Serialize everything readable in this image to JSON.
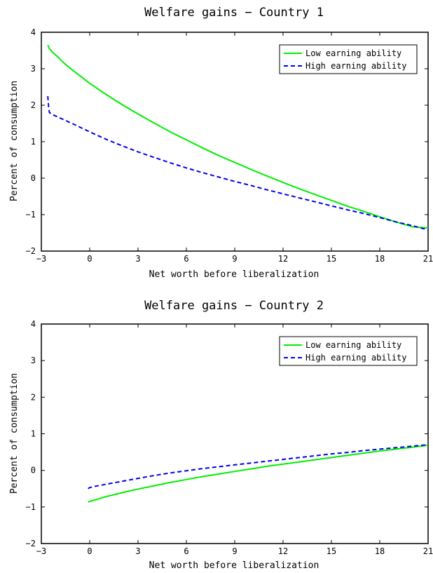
{
  "chart_data": [
    {
      "type": "line",
      "title": "Welfare gains − Country 1",
      "xlabel": "Net worth before liberalization",
      "ylabel": "Percent of consumption",
      "xlim": [
        -3,
        21
      ],
      "ylim": [
        -2,
        4
      ],
      "xticks": [
        -3,
        0,
        3,
        6,
        9,
        12,
        15,
        18,
        21
      ],
      "yticks": [
        -2,
        -1,
        0,
        1,
        2,
        3,
        4
      ],
      "xtick_labels": [
        "−3",
        "0",
        "3",
        "6",
        "9",
        "12",
        "15",
        "18",
        "21"
      ],
      "ytick_labels": [
        "−2",
        "−1",
        "0",
        "1",
        "2",
        "3",
        "4"
      ],
      "grid": false,
      "legend_position": "top-right",
      "series": [
        {
          "name": "Low earning ability",
          "color": "#00ee00",
          "dash": "solid",
          "x": [
            -2.6,
            -2.5,
            -2.3,
            -2,
            -1.5,
            -1,
            0,
            1,
            2,
            3,
            4,
            5,
            6,
            7,
            8,
            9,
            10,
            11,
            12,
            13,
            14,
            15,
            16,
            17,
            18,
            19,
            20,
            21
          ],
          "y": [
            3.65,
            3.55,
            3.45,
            3.33,
            3.12,
            2.94,
            2.6,
            2.3,
            2.02,
            1.76,
            1.51,
            1.27,
            1.05,
            0.83,
            0.62,
            0.43,
            0.24,
            0.06,
            -0.12,
            -0.29,
            -0.45,
            -0.61,
            -0.77,
            -0.91,
            -1.06,
            -1.2,
            -1.33,
            -1.37
          ]
        },
        {
          "name": "High earning ability",
          "color": "#0000ee",
          "dash": "dashed",
          "x": [
            -2.6,
            -2.55,
            -2.5,
            -2.3,
            -2,
            -1.5,
            -1,
            0,
            1,
            2,
            3,
            4,
            5,
            6,
            7,
            8,
            9,
            10,
            11,
            12,
            13,
            14,
            15,
            16,
            17,
            18,
            19,
            20,
            21
          ],
          "y": [
            2.25,
            1.95,
            1.8,
            1.74,
            1.68,
            1.58,
            1.48,
            1.27,
            1.07,
            0.89,
            0.72,
            0.57,
            0.42,
            0.28,
            0.15,
            0.03,
            -0.09,
            -0.2,
            -0.32,
            -0.43,
            -0.54,
            -0.65,
            -0.76,
            -0.87,
            -0.97,
            -1.08,
            -1.2,
            -1.3,
            -1.42
          ]
        }
      ]
    },
    {
      "type": "line",
      "title": "Welfare gains − Country 2",
      "xlabel": "Net worth before liberalization",
      "ylabel": "Percent of consumption",
      "xlim": [
        -3,
        21
      ],
      "ylim": [
        -2,
        4
      ],
      "xticks": [
        -3,
        0,
        3,
        6,
        9,
        12,
        15,
        18,
        21
      ],
      "yticks": [
        -2,
        -1,
        0,
        1,
        2,
        3,
        4
      ],
      "xtick_labels": [
        "−3",
        "0",
        "3",
        "6",
        "9",
        "12",
        "15",
        "18",
        "21"
      ],
      "ytick_labels": [
        "−2",
        "−1",
        "0",
        "1",
        "2",
        "3",
        "4"
      ],
      "grid": false,
      "legend_position": "top-right",
      "series": [
        {
          "name": "Low earning ability",
          "color": "#00ee00",
          "dash": "solid",
          "x": [
            -0.1,
            0,
            1,
            2,
            3,
            4,
            5,
            6,
            7,
            8,
            9,
            10,
            11,
            12,
            13,
            14,
            15,
            16,
            17,
            18,
            19,
            20,
            21
          ],
          "y": [
            -0.87,
            -0.85,
            -0.72,
            -0.61,
            -0.51,
            -0.42,
            -0.33,
            -0.25,
            -0.17,
            -0.1,
            -0.03,
            0.04,
            0.11,
            0.17,
            0.23,
            0.29,
            0.35,
            0.41,
            0.47,
            0.53,
            0.58,
            0.63,
            0.69
          ]
        },
        {
          "name": "High earning ability",
          "color": "#0000ee",
          "dash": "dashed",
          "x": [
            -0.1,
            0,
            0.3,
            1,
            2,
            3,
            4,
            5,
            6,
            7,
            8,
            9,
            10,
            11,
            12,
            13,
            14,
            15,
            16,
            17,
            18,
            19,
            20,
            21
          ],
          "y": [
            -0.5,
            -0.47,
            -0.44,
            -0.38,
            -0.3,
            -0.22,
            -0.14,
            -0.07,
            -0.01,
            0.05,
            0.1,
            0.15,
            0.2,
            0.25,
            0.3,
            0.35,
            0.4,
            0.45,
            0.49,
            0.54,
            0.58,
            0.62,
            0.66,
            0.7
          ]
        }
      ]
    }
  ]
}
